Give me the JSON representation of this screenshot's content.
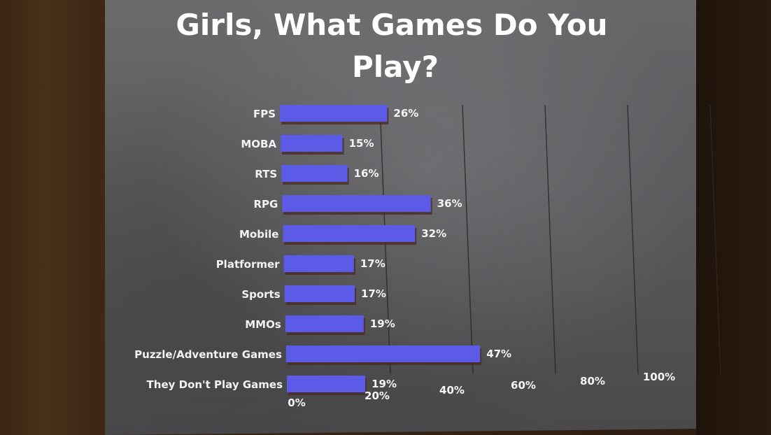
{
  "slide": {
    "title_line1": "Girls, What Games Do You",
    "title_line2": "Play?"
  },
  "colors": {
    "bar_fill": "#5b5be8",
    "bar_shadow": "#4a2a22",
    "grid": "#2a2a2a",
    "text": "#ffffff"
  },
  "chart_data": {
    "type": "bar",
    "orientation": "horizontal",
    "categories": [
      "FPS",
      "MOBA",
      "RTS",
      "RPG",
      "Mobile",
      "Platformer",
      "Sports",
      "MMOs",
      "Puzzle/Adventure Games",
      "They Don't Play Games"
    ],
    "values": [
      26,
      15,
      16,
      36,
      32,
      17,
      17,
      19,
      47,
      19
    ],
    "value_labels": [
      "26%",
      "15%",
      "16%",
      "36%",
      "32%",
      "17%",
      "17%",
      "19%",
      "47%",
      "19%"
    ],
    "x_ticks": [
      "0%",
      "20%",
      "40%",
      "60%",
      "80%",
      "100%"
    ],
    "xlim": [
      0,
      100
    ],
    "title": "Girls, What Games Do You Play?",
    "xlabel": "",
    "ylabel": "",
    "grid": true
  }
}
